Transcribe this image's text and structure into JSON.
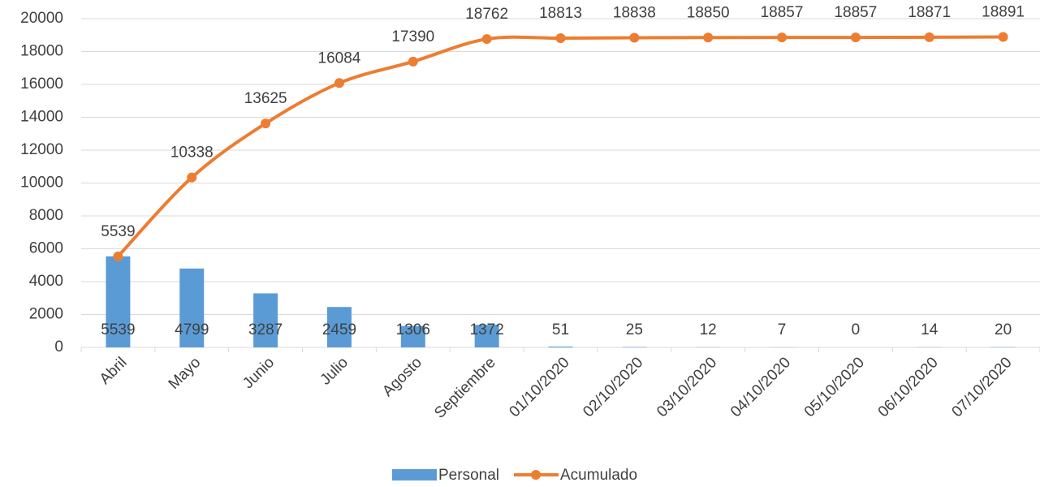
{
  "chart_data": {
    "type": "combo",
    "categories": [
      "Abril",
      "Mayo",
      "Junio",
      "Julio",
      "Agosto",
      "Septiembre",
      "01/10/2020",
      "02/10/2020",
      "03/10/2020",
      "04/10/2020",
      "05/10/2020",
      "06/10/2020",
      "07/10/2020"
    ],
    "series": [
      {
        "name": "Personal",
        "type": "bar",
        "color": "#5b9bd5",
        "values": [
          5539,
          4799,
          3287,
          2459,
          1306,
          1372,
          51,
          25,
          12,
          7,
          0,
          14,
          20
        ]
      },
      {
        "name": "Acumulado",
        "type": "line",
        "color": "#ed7d31",
        "values": [
          5539,
          10338,
          13625,
          16084,
          17390,
          18762,
          18813,
          18838,
          18850,
          18857,
          18857,
          18871,
          18891
        ]
      }
    ],
    "ylim": [
      0,
      20000
    ],
    "yticks": [
      0,
      2000,
      4000,
      6000,
      8000,
      10000,
      12000,
      14000,
      16000,
      18000,
      20000
    ],
    "grid": true,
    "legend": "bottom"
  }
}
